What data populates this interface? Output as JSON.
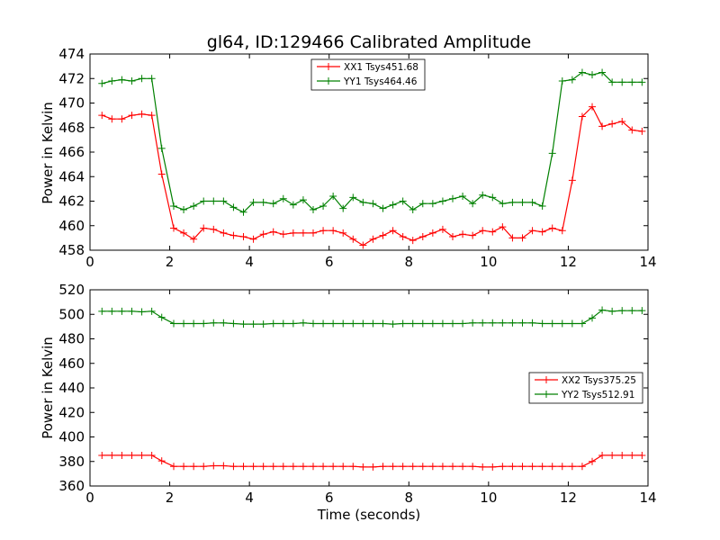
{
  "chart_data": [
    {
      "type": "line",
      "title": "gl64, ID:129466 Calibrated Amplitude",
      "xlabel": "",
      "ylabel": "Power in Kelvin",
      "xlim": [
        0,
        14
      ],
      "ylim": [
        458,
        474
      ],
      "xticks": [
        0,
        2,
        4,
        6,
        8,
        10,
        12,
        14
      ],
      "yticks": [
        458,
        460,
        462,
        464,
        466,
        468,
        470,
        472,
        474
      ],
      "grid": false,
      "legend_position": "top-center",
      "x": [
        0.3,
        0.55,
        0.8,
        1.05,
        1.3,
        1.55,
        1.8,
        2.1,
        2.35,
        2.6,
        2.85,
        3.1,
        3.35,
        3.6,
        3.85,
        4.1,
        4.35,
        4.6,
        4.85,
        5.1,
        5.35,
        5.6,
        5.85,
        6.1,
        6.35,
        6.6,
        6.85,
        7.1,
        7.35,
        7.6,
        7.85,
        8.1,
        8.35,
        8.6,
        8.85,
        9.1,
        9.35,
        9.6,
        9.85,
        10.1,
        10.35,
        10.6,
        10.85,
        11.1,
        11.35,
        11.6,
        11.85,
        12.1,
        12.35,
        12.6,
        12.85,
        13.1,
        13.35,
        13.6,
        13.85
      ],
      "series": [
        {
          "name": "XX1 Tsys451.68",
          "color": "#ff0000",
          "values": [
            469.0,
            468.7,
            468.7,
            469.0,
            469.1,
            469.0,
            464.2,
            459.8,
            459.4,
            458.9,
            459.8,
            459.7,
            459.4,
            459.2,
            459.1,
            458.9,
            459.3,
            459.5,
            459.3,
            459.4,
            459.4,
            459.4,
            459.6,
            459.6,
            459.4,
            458.9,
            458.4,
            458.9,
            459.2,
            459.6,
            459.1,
            458.8,
            459.1,
            459.4,
            459.7,
            459.1,
            459.3,
            459.2,
            459.6,
            459.5,
            459.9,
            459.0,
            459.0,
            459.6,
            459.5,
            459.8,
            459.6,
            463.7,
            468.9,
            469.7,
            468.1,
            468.3,
            468.5,
            467.8,
            467.7
          ]
        },
        {
          "name": "YY1 Tsys464.46",
          "color": "#008000",
          "values": [
            471.6,
            471.8,
            471.9,
            471.8,
            472.0,
            472.0,
            466.3,
            461.6,
            461.3,
            461.6,
            462.0,
            462.0,
            462.0,
            461.5,
            461.1,
            461.9,
            461.9,
            461.8,
            462.2,
            461.7,
            462.1,
            461.3,
            461.6,
            462.4,
            461.4,
            462.3,
            461.9,
            461.8,
            461.4,
            461.7,
            462.0,
            461.3,
            461.8,
            461.8,
            462.0,
            462.2,
            462.4,
            461.8,
            462.5,
            462.3,
            461.8,
            461.9,
            461.9,
            461.9,
            461.6,
            465.9,
            471.8,
            471.9,
            472.5,
            472.3,
            472.5,
            471.7,
            471.7,
            471.7,
            471.7
          ]
        }
      ]
    },
    {
      "type": "line",
      "title": "",
      "xlabel": "Time (seconds)",
      "ylabel": "Power in Kelvin",
      "xlim": [
        0,
        14
      ],
      "ylim": [
        360,
        520
      ],
      "xticks": [
        0,
        2,
        4,
        6,
        8,
        10,
        12,
        14
      ],
      "yticks": [
        360,
        380,
        400,
        420,
        440,
        460,
        480,
        500,
        520
      ],
      "grid": false,
      "legend_position": "center-right",
      "x": [
        0.3,
        0.55,
        0.8,
        1.05,
        1.3,
        1.55,
        1.8,
        2.1,
        2.35,
        2.6,
        2.85,
        3.1,
        3.35,
        3.6,
        3.85,
        4.1,
        4.35,
        4.6,
        4.85,
        5.1,
        5.35,
        5.6,
        5.85,
        6.1,
        6.35,
        6.6,
        6.85,
        7.1,
        7.35,
        7.6,
        7.85,
        8.1,
        8.35,
        8.6,
        8.85,
        9.1,
        9.35,
        9.6,
        9.85,
        10.1,
        10.35,
        10.6,
        10.85,
        11.1,
        11.35,
        11.6,
        11.85,
        12.1,
        12.35,
        12.6,
        12.85,
        13.1,
        13.35,
        13.6,
        13.85
      ],
      "series": [
        {
          "name": "XX2 Tsys375.25",
          "color": "#ff0000",
          "values": [
            385.0,
            385.0,
            385.0,
            385.0,
            385.0,
            385.0,
            380.5,
            376.0,
            376.0,
            376.0,
            376.0,
            376.5,
            376.5,
            376.0,
            376.0,
            376.0,
            376.0,
            376.0,
            376.0,
            376.0,
            376.0,
            376.0,
            376.0,
            376.0,
            376.0,
            376.0,
            375.5,
            375.5,
            376.0,
            376.0,
            376.0,
            376.0,
            376.0,
            376.0,
            376.0,
            376.0,
            376.0,
            376.0,
            375.5,
            375.5,
            376.0,
            376.0,
            376.0,
            376.0,
            376.0,
            376.0,
            376.0,
            376.0,
            376.0,
            380.0,
            385.0,
            385.0,
            385.0,
            385.0,
            385.0
          ]
        },
        {
          "name": "YY2 Tsys512.91",
          "color": "#008000",
          "values": [
            502.5,
            502.5,
            502.5,
            502.5,
            502.0,
            502.5,
            497.5,
            492.5,
            492.5,
            492.5,
            492.5,
            493.0,
            493.0,
            492.5,
            492.0,
            492.0,
            492.0,
            492.5,
            492.5,
            492.5,
            493.0,
            492.5,
            492.5,
            492.5,
            492.5,
            492.5,
            492.5,
            492.5,
            492.5,
            492.0,
            492.5,
            492.5,
            492.5,
            492.5,
            492.5,
            492.5,
            492.5,
            493.0,
            493.0,
            493.0,
            493.0,
            493.0,
            493.0,
            493.0,
            492.5,
            492.5,
            492.5,
            492.5,
            492.5,
            497.0,
            503.5,
            502.5,
            503.0,
            503.0,
            503.0
          ]
        }
      ]
    }
  ]
}
